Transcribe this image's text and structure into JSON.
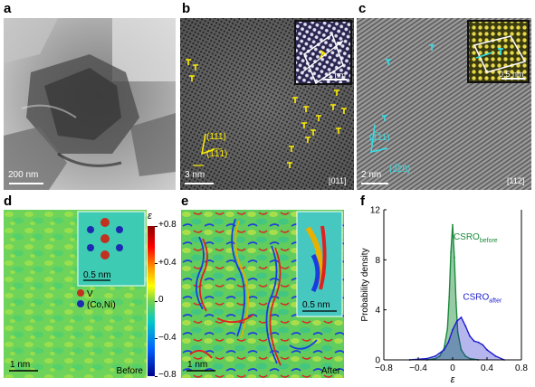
{
  "panels": {
    "a": {
      "letter": "a",
      "scale": "200 nm"
    },
    "b": {
      "letter": "b",
      "scale": "3 nm",
      "zone": "[011]",
      "inset_scale": "1 nm",
      "plane1": "(111)",
      "plane2": "(1̅1̅1)"
    },
    "c": {
      "letter": "c",
      "scale": "2 nm",
      "zone": "[112]",
      "inset_scale": "0.5 nm",
      "plane1": "(1̅11)",
      "plane2": "(2̅20)"
    },
    "d": {
      "letter": "d",
      "scale": "1 nm",
      "state": "Before",
      "inset_scale": "0.5 nm",
      "legend_v": "V",
      "legend_coni": "(Co,Ni)"
    },
    "e": {
      "letter": "e",
      "scale": "1 nm",
      "state": "After",
      "inset_scale": "0.5 nm"
    },
    "f": {
      "letter": "f"
    }
  },
  "colorbar": {
    "symbol": "ε",
    "ticks": [
      "+0.8",
      "+0.4",
      "0",
      "−0.4",
      "−0.8"
    ],
    "values": [
      0.8,
      0.4,
      0,
      -0.4,
      -0.8
    ]
  },
  "colors": {
    "defect_yellow": "#ffee00",
    "defect_cyan": "#33e0e8",
    "before_green": "#1a8a3a",
    "after_blue": "#1c1ccc"
  },
  "chart_data": {
    "type": "area",
    "xlabel": "ε",
    "ylabel": "Probability density",
    "xlim": [
      -0.8,
      0.8
    ],
    "ylim": [
      0,
      12
    ],
    "xticks": [
      -0.8,
      -0.4,
      0,
      0.4,
      0.8
    ],
    "xtick_labels": [
      "−0.8",
      "−0.4",
      "0",
      "0.4",
      "0.8"
    ],
    "yticks": [
      0,
      4,
      8,
      12
    ],
    "series": [
      {
        "name": "CSRO",
        "name_sub": "before",
        "color": "#1a8a3a",
        "x": [
          -0.3,
          -0.2,
          -0.15,
          -0.1,
          -0.06,
          -0.04,
          -0.02,
          0.0,
          0.02,
          0.04,
          0.06,
          0.1,
          0.15,
          0.2,
          0.3
        ],
        "y": [
          0.0,
          0.1,
          0.3,
          0.9,
          2.5,
          5.0,
          8.6,
          10.8,
          8.2,
          4.6,
          2.2,
          0.8,
          0.3,
          0.1,
          0.0
        ]
      },
      {
        "name": "CSRO",
        "name_sub": "after",
        "color": "#1c1ccc",
        "x": [
          -0.5,
          -0.3,
          -0.2,
          -0.1,
          -0.05,
          0.0,
          0.05,
          0.1,
          0.15,
          0.2,
          0.25,
          0.3,
          0.35,
          0.4,
          0.5,
          0.6
        ],
        "y": [
          0.0,
          0.1,
          0.3,
          0.8,
          1.4,
          2.4,
          3.1,
          3.4,
          2.7,
          1.9,
          1.5,
          1.4,
          1.2,
          0.8,
          0.3,
          0.0
        ]
      }
    ]
  }
}
